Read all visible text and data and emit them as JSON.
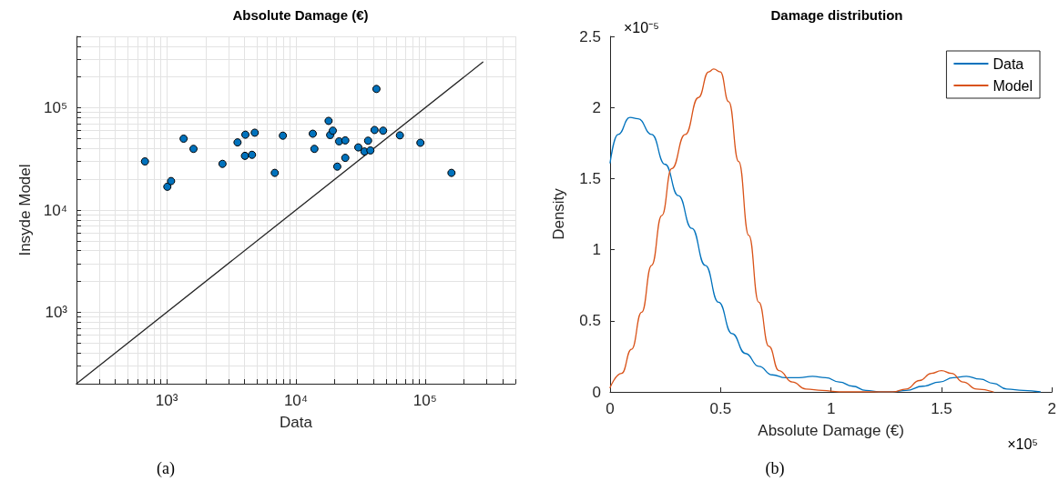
{
  "chart_data": [
    {
      "type": "scatter",
      "title": "Absolute Damage (€)",
      "xlabel": "Data",
      "ylabel": "Insyde Model",
      "log": "xy",
      "grid": true,
      "legend": false,
      "xlim": [
        200,
        500000
      ],
      "ylim": [
        200,
        500000
      ],
      "xticks": [
        {
          "value": 200,
          "label": null
        },
        {
          "value": 300,
          "label": null
        },
        {
          "value": 400,
          "label": null
        },
        {
          "value": 500,
          "label": null
        },
        {
          "value": 600,
          "label": null
        },
        {
          "value": 700,
          "label": null
        },
        {
          "value": 800,
          "label": null
        },
        {
          "value": 900,
          "label": null
        },
        {
          "value": 1000,
          "label": "10³"
        },
        {
          "value": 2000,
          "label": null
        },
        {
          "value": 3000,
          "label": null
        },
        {
          "value": 4000,
          "label": null
        },
        {
          "value": 5000,
          "label": null
        },
        {
          "value": 6000,
          "label": null
        },
        {
          "value": 7000,
          "label": null
        },
        {
          "value": 8000,
          "label": null
        },
        {
          "value": 9000,
          "label": null
        },
        {
          "value": 10000,
          "label": "10⁴"
        },
        {
          "value": 20000,
          "label": null
        },
        {
          "value": 30000,
          "label": null
        },
        {
          "value": 40000,
          "label": null
        },
        {
          "value": 50000,
          "label": null
        },
        {
          "value": 60000,
          "label": null
        },
        {
          "value": 70000,
          "label": null
        },
        {
          "value": 80000,
          "label": null
        },
        {
          "value": 90000,
          "label": null
        },
        {
          "value": 100000,
          "label": "10⁵"
        },
        {
          "value": 200000,
          "label": null
        },
        {
          "value": 300000,
          "label": null
        },
        {
          "value": 400000,
          "label": null
        },
        {
          "value": 500000,
          "label": null
        }
      ],
      "yticks": [
        {
          "value": 200,
          "label": null
        },
        {
          "value": 300,
          "label": null
        },
        {
          "value": 400,
          "label": null
        },
        {
          "value": 500,
          "label": null
        },
        {
          "value": 600,
          "label": null
        },
        {
          "value": 700,
          "label": null
        },
        {
          "value": 800,
          "label": null
        },
        {
          "value": 900,
          "label": null
        },
        {
          "value": 1000,
          "label": "10³"
        },
        {
          "value": 2000,
          "label": null
        },
        {
          "value": 3000,
          "label": null
        },
        {
          "value": 4000,
          "label": null
        },
        {
          "value": 5000,
          "label": null
        },
        {
          "value": 6000,
          "label": null
        },
        {
          "value": 7000,
          "label": null
        },
        {
          "value": 8000,
          "label": null
        },
        {
          "value": 9000,
          "label": null
        },
        {
          "value": 10000,
          "label": "10⁴"
        },
        {
          "value": 20000,
          "label": null
        },
        {
          "value": 30000,
          "label": null
        },
        {
          "value": 40000,
          "label": null
        },
        {
          "value": 50000,
          "label": null
        },
        {
          "value": 60000,
          "label": null
        },
        {
          "value": 70000,
          "label": null
        },
        {
          "value": 80000,
          "label": null
        },
        {
          "value": 90000,
          "label": null
        },
        {
          "value": 100000,
          "label": "10⁵"
        },
        {
          "value": 200000,
          "label": null
        },
        {
          "value": 300000,
          "label": null
        },
        {
          "value": 400000,
          "label": null
        },
        {
          "value": 500000,
          "label": null
        }
      ],
      "annotations": [
        "(a)"
      ],
      "series": [
        {
          "marker": "circle",
          "color": "#0072bd",
          "x": [
            678,
            1010,
            1080,
            1350,
            1610,
            2700,
            3530,
            4060,
            4030,
            4570,
            4800,
            6860,
            7920,
            13500,
            13900,
            17900,
            18400,
            19300,
            20900,
            21600,
            24100,
            24100,
            30400,
            33900,
            36200,
            37700,
            40600,
            42000,
            47300,
            63800,
            92000,
            160000
          ],
          "values": [
            29900,
            16900,
            19200,
            49900,
            39700,
            28300,
            45900,
            54600,
            33900,
            34700,
            57100,
            23100,
            53400,
            55800,
            39700,
            74500,
            54200,
            59800,
            26600,
            47000,
            48000,
            32400,
            41000,
            37400,
            47700,
            38300,
            60700,
            153000,
            59800,
            53800,
            45500,
            23100
          ]
        },
        {
          "type": "line",
          "marker": "none",
          "color": "#262626",
          "x": [
            200,
            280000
          ],
          "values": [
            200,
            280000
          ]
        }
      ]
    },
    {
      "type": "line",
      "title": "Damage distribution",
      "xlabel": "Absolute Damage (€)",
      "ylabel": "Density",
      "grid": false,
      "legend": "top right",
      "marker": "none",
      "line_style": "solid",
      "xlim": [
        0,
        2
      ],
      "ylim": [
        0,
        2.5
      ],
      "xticks": [
        0,
        0.5,
        1,
        1.5,
        2
      ],
      "yticks": [
        0,
        0.5,
        1,
        1.5,
        2,
        2.5
      ],
      "annotations": [
        "(b)",
        "×10⁻⁵",
        "×10⁵"
      ],
      "series": [
        {
          "name": "Data",
          "color": "#0072bd",
          "x": [
            0,
            0.036,
            0.09,
            0.127,
            0.188,
            0.249,
            0.309,
            0.37,
            0.431,
            0.491,
            0.552,
            0.613,
            0.673,
            0.734,
            0.795,
            0.855,
            0.916,
            0.976,
            1.037,
            1.098,
            1.158,
            1.219,
            1.28,
            1.34,
            1.416,
            1.492,
            1.553,
            1.613,
            1.674,
            1.735,
            1.795,
            1.871,
            1.947
          ],
          "values": [
            1.61,
            1.81,
            1.93,
            1.92,
            1.81,
            1.6,
            1.38,
            1.15,
            0.89,
            0.63,
            0.41,
            0.27,
            0.18,
            0.12,
            0.1,
            0.1,
            0.11,
            0.1,
            0.07,
            0.04,
            0.01,
            0,
            0,
            0.01,
            0.04,
            0.07,
            0.1,
            0.11,
            0.09,
            0.06,
            0.02,
            0.01,
            0
          ]
        },
        {
          "name": "Model",
          "color": "#d95319",
          "x": [
            0,
            0.052,
            0.097,
            0.143,
            0.188,
            0.234,
            0.279,
            0.34,
            0.4,
            0.446,
            0.469,
            0.499,
            0.537,
            0.582,
            0.628,
            0.673,
            0.719,
            0.764,
            0.825,
            0.886,
            0.961,
            1.037,
            1.189,
            1.28,
            1.34,
            1.401,
            1.454,
            1.5,
            1.545,
            1.598,
            1.659,
            1.735
          ],
          "values": [
            0.03,
            0.13,
            0.3,
            0.56,
            0.89,
            1.24,
            1.57,
            1.81,
            2.07,
            2.25,
            2.27,
            2.25,
            2.04,
            1.62,
            1.1,
            0.63,
            0.32,
            0.15,
            0.07,
            0.02,
            0.01,
            0,
            0,
            0,
            0.02,
            0.08,
            0.13,
            0.15,
            0.13,
            0.07,
            0.02,
            0
          ]
        }
      ]
    }
  ]
}
